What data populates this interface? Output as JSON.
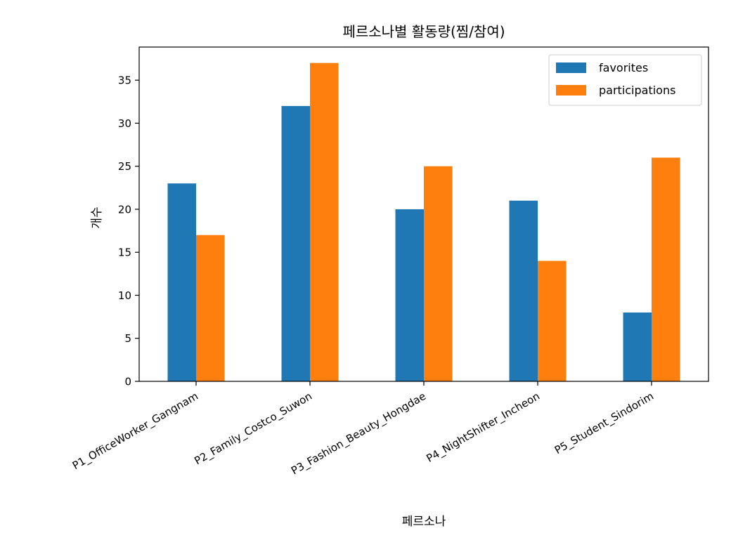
{
  "chart_data": {
    "type": "bar",
    "title": "페르소나별 활동량(찜/참여)",
    "xlabel": "페르소나",
    "ylabel": "개수",
    "categories": [
      "P1_OfficeWorker_Gangnam",
      "P2_Family_Costco_Suwon",
      "P3_Fashion_Beauty_Hongdae",
      "P4_NightShifter_Incheon",
      "P5_Student_Sindorim"
    ],
    "series": [
      {
        "name": "favorites",
        "color": "#1f77b4",
        "values": [
          23,
          32,
          20,
          21,
          8
        ]
      },
      {
        "name": "participations",
        "color": "#ff7f0e",
        "values": [
          17,
          37,
          25,
          14,
          26
        ]
      }
    ],
    "ylim": [
      0,
      38.85
    ],
    "yticks": [
      0,
      5,
      10,
      15,
      20,
      25,
      30,
      35
    ],
    "grid": false,
    "legend_position": "top-right"
  }
}
